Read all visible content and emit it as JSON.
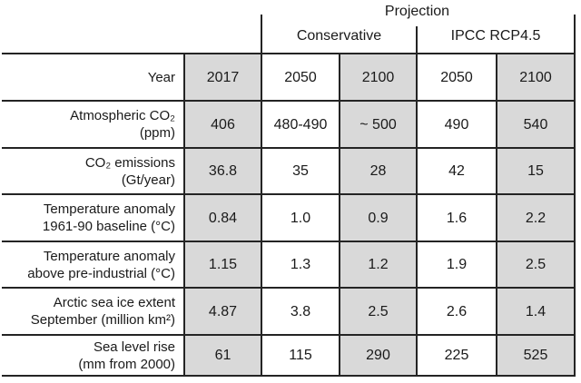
{
  "chart_data": {
    "type": "table",
    "title": "Projection",
    "header": {
      "projection_label": "Projection",
      "group_headers": [
        "Conservative",
        "IPCC RCP4.5"
      ]
    },
    "rows": [
      {
        "label": [
          "Year",
          ""
        ],
        "values": [
          "2017",
          "2050",
          "2100",
          "2050",
          "2100"
        ]
      },
      {
        "label": [
          "Atmospheric CO₂",
          "(ppm)"
        ],
        "values": [
          "406",
          "480-490",
          "~ 500",
          "490",
          "540"
        ]
      },
      {
        "label": [
          "CO₂ emissions",
          "(Gt/year)"
        ],
        "values": [
          "36.8",
          "35",
          "28",
          "42",
          "15"
        ]
      },
      {
        "label": [
          "Temperature anomaly",
          "1961-90 baseline (°C)"
        ],
        "values": [
          "0.84",
          "1.0",
          "0.9",
          "1.6",
          "2.2"
        ]
      },
      {
        "label": [
          "Temperature anomaly",
          "above pre-industrial (°C)"
        ],
        "values": [
          "1.15",
          "1.3",
          "1.2",
          "1.9",
          "2.5"
        ]
      },
      {
        "label": [
          "Arctic sea ice extent",
          "September (million km²)"
        ],
        "values": [
          "4.87",
          "3.8",
          "2.5",
          "2.6",
          "1.4"
        ]
      },
      {
        "label": [
          "Sea level rise",
          "(mm from 2000)"
        ],
        "values": [
          "61",
          "115",
          "290",
          "225",
          "525"
        ]
      }
    ],
    "colors": {
      "shaded_cell": "#d9d9d9",
      "grid_line": "#242424",
      "text": "#1a1a1a"
    }
  }
}
